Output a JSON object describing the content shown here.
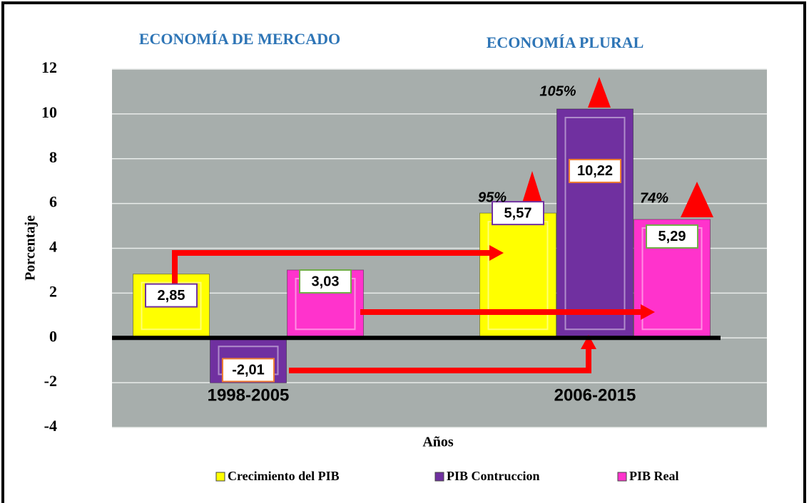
{
  "chart_data": {
    "type": "bar",
    "annotations": [
      "ECONOMÍA DE MERCADO",
      "ECONOMÍA PLURAL",
      "95%",
      "105%",
      "74%"
    ],
    "x_label": "Años",
    "y_label": "Porcentaje",
    "categories": [
      "1998-2005",
      "2006-2015"
    ],
    "series": [
      {
        "name": "Crecimiento del PIB",
        "color": "#ffff00",
        "values": [
          2.85,
          5.57
        ],
        "value_labels": [
          "2,85",
          "5,57"
        ]
      },
      {
        "name": "PIB Contruccion",
        "color": "#7030a0",
        "values": [
          -2.01,
          10.22
        ],
        "value_labels": [
          "-2,01",
          "10,22"
        ]
      },
      {
        "name": "PIB Real",
        "color": "#ff33cc",
        "values": [
          3.03,
          5.29
        ],
        "value_labels": [
          "3,03",
          "5,29"
        ]
      }
    ],
    "ylim": [
      -4,
      12
    ],
    "yticks": [
      -4,
      -2,
      0,
      2,
      4,
      6,
      8,
      10,
      12
    ],
    "grid": true
  }
}
